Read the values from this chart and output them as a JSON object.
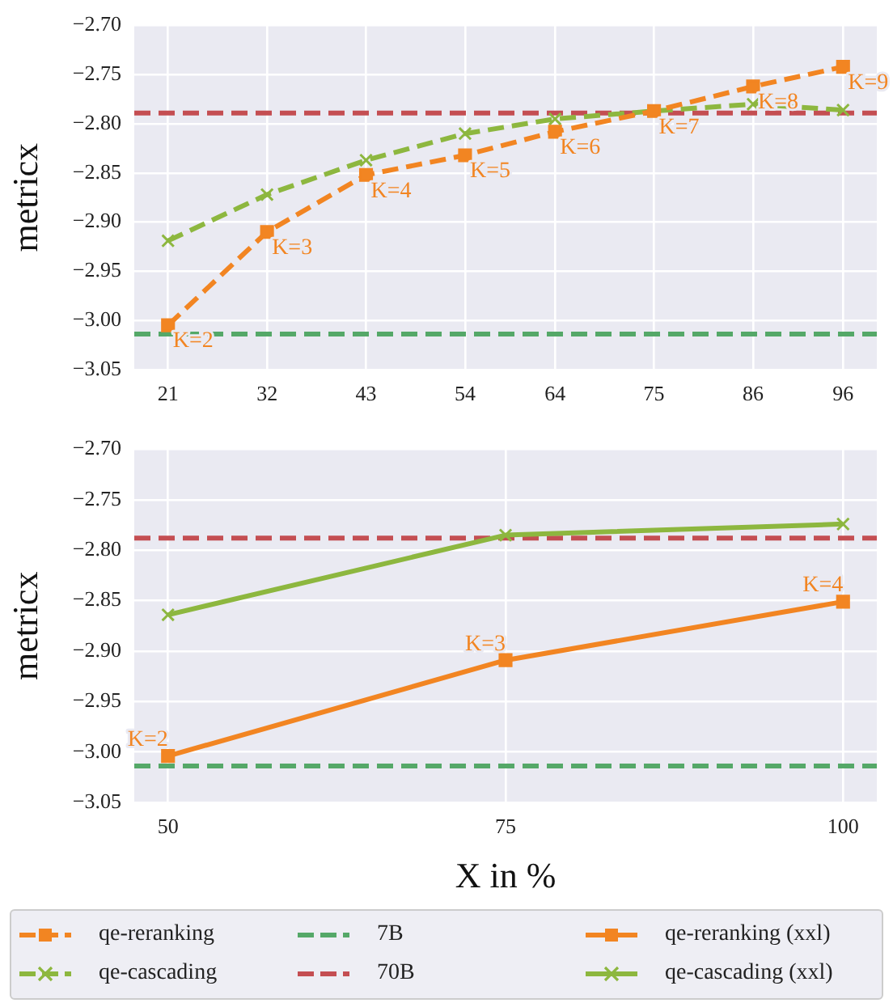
{
  "chart_data": [
    {
      "type": "line",
      "ylabel": "metricx",
      "x": [
        21,
        32,
        43,
        54,
        64,
        75,
        86,
        96
      ],
      "xlim": [
        17.25,
        99.75
      ],
      "xticks": [
        21,
        32,
        43,
        54,
        64,
        75,
        86,
        96
      ],
      "ylim": [
        -3.05,
        -2.7
      ],
      "yticks": [
        {
          "value": -3.05,
          "label": "−3.05"
        },
        {
          "value": -3.0,
          "label": "−3.00"
        },
        {
          "value": -2.95,
          "label": "−2.95"
        },
        {
          "value": -2.9,
          "label": "−2.90"
        },
        {
          "value": -2.85,
          "label": "−2.85"
        },
        {
          "value": -2.8,
          "label": "−2.80"
        },
        {
          "value": -2.75,
          "label": "−2.75"
        },
        {
          "value": -2.7,
          "label": "−2.70"
        }
      ],
      "grid": true,
      "legend": "bottom",
      "series": [
        {
          "name": "qe-reranking",
          "color": "#f28522",
          "marker": "square",
          "line_style": "dashed",
          "values": [
            -3.005,
            -2.91,
            -2.852,
            -2.832,
            -2.808,
            -2.787,
            -2.762,
            -2.742
          ]
        },
        {
          "name": "qe-cascading",
          "color": "#8db73f",
          "marker": "cross",
          "line_style": "dashed",
          "values": [
            -2.919,
            -2.872,
            -2.837,
            -2.81,
            -2.795,
            -2.787,
            -2.78,
            -2.786
          ]
        }
      ],
      "ref_lines": [
        {
          "axis": "y",
          "value": -3.014,
          "label": "7B",
          "color": "#55a868",
          "line_style": "dashed"
        },
        {
          "axis": "y",
          "value": -2.789,
          "label": "70B",
          "color": "#c44e52",
          "line_style": "dashed"
        }
      ],
      "annotations": [
        {
          "text": "K=2",
          "x": 21,
          "y": -3.005
        },
        {
          "text": "K=3",
          "x": 32,
          "y": -2.91
        },
        {
          "text": "K=4",
          "x": 43,
          "y": -2.852
        },
        {
          "text": "K=5",
          "x": 54,
          "y": -2.832
        },
        {
          "text": "K=6",
          "x": 64,
          "y": -2.808
        },
        {
          "text": "K=7",
          "x": 75,
          "y": -2.787
        },
        {
          "text": "K=8",
          "x": 86,
          "y": -2.762
        },
        {
          "text": "K=9",
          "x": 96,
          "y": -2.742
        }
      ]
    },
    {
      "type": "line",
      "xlabel": "X in %",
      "ylabel": "metricx",
      "x": [
        50,
        75,
        100
      ],
      "xlim": [
        47.5,
        102.5
      ],
      "xticks": [
        50,
        75,
        100
      ],
      "ylim": [
        -3.05,
        -2.7
      ],
      "yticks": [
        {
          "value": -3.05,
          "label": "−3.05"
        },
        {
          "value": -3.0,
          "label": "−3.00"
        },
        {
          "value": -2.95,
          "label": "−2.95"
        },
        {
          "value": -2.9,
          "label": "−2.90"
        },
        {
          "value": -2.85,
          "label": "−2.85"
        },
        {
          "value": -2.8,
          "label": "−2.80"
        },
        {
          "value": -2.75,
          "label": "−2.75"
        },
        {
          "value": -2.7,
          "label": "−2.70"
        }
      ],
      "grid": true,
      "legend": "bottom",
      "series": [
        {
          "name": "qe-reranking (xxl)",
          "color": "#f28522",
          "marker": "square",
          "line_style": "solid",
          "values": [
            -3.004,
            -2.909,
            -2.851
          ]
        },
        {
          "name": "qe-cascading (xxl)",
          "color": "#8db73f",
          "marker": "cross",
          "line_style": "solid",
          "values": [
            -2.864,
            -2.785,
            -2.774
          ]
        }
      ],
      "ref_lines": [
        {
          "axis": "y",
          "value": -3.014,
          "color": "#55a868",
          "line_style": "dashed"
        },
        {
          "axis": "y",
          "value": -2.788,
          "color": "#c44e52",
          "line_style": "dashed"
        }
      ],
      "annotations": [
        {
          "text": "K=2",
          "x": 50,
          "y": -3.004
        },
        {
          "text": "K=3",
          "x": 75,
          "y": -2.909
        },
        {
          "text": "K=4",
          "x": 100,
          "y": -2.851
        }
      ]
    }
  ]
}
